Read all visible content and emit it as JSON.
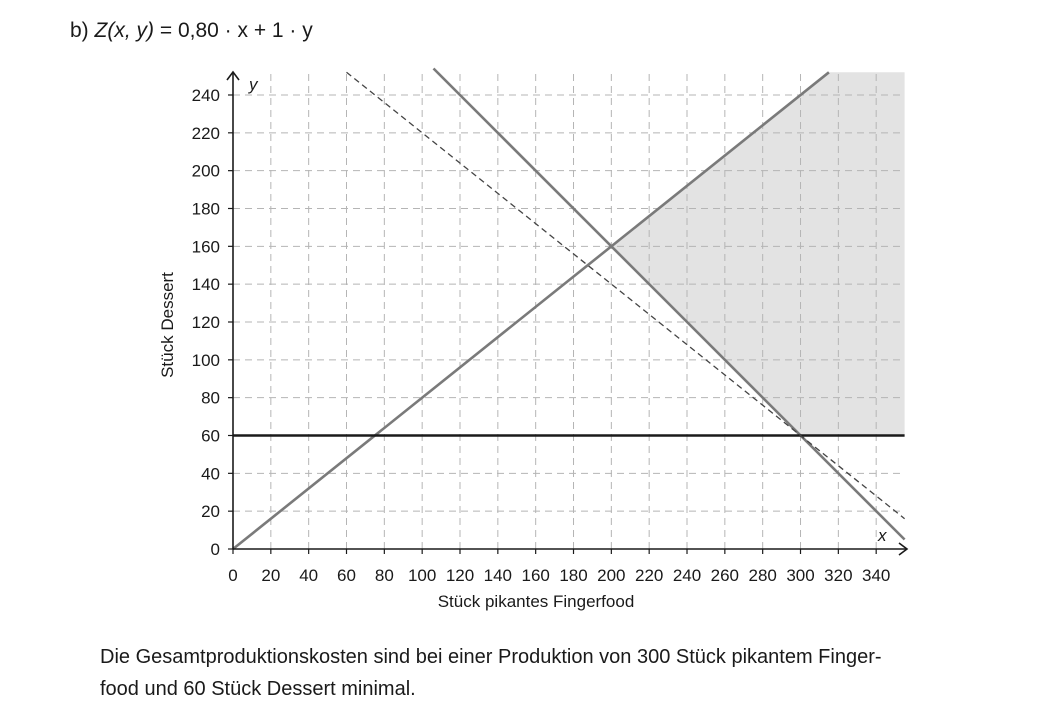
{
  "task": {
    "letter": "b)",
    "function_name": "Z(x, y)",
    "equals": " = ",
    "expression": "0,80 · x + 1 · y"
  },
  "chart_data": {
    "type": "line",
    "title": "",
    "xlabel": "Stück pikantes Fingerfood",
    "ylabel": "Stück Dessert",
    "x_axis_var": "x",
    "y_axis_var": "y",
    "xlim": [
      0,
      355
    ],
    "ylim": [
      0,
      250
    ],
    "x_ticks": [
      0,
      20,
      40,
      60,
      80,
      100,
      120,
      140,
      160,
      180,
      200,
      220,
      240,
      260,
      280,
      300,
      320,
      340
    ],
    "y_ticks": [
      0,
      20,
      40,
      60,
      80,
      100,
      120,
      140,
      160,
      180,
      200,
      220,
      240
    ],
    "grid": true,
    "grid_style": "dashed",
    "lines": [
      {
        "id": "constraint-y-equals-0.8x",
        "x": [
          0,
          315
        ],
        "y": [
          0,
          252
        ],
        "style": "solid",
        "color": "#7a7a7a"
      },
      {
        "id": "constraint-x-plus-y-equals-360",
        "x": [
          106,
          355
        ],
        "y": [
          254,
          5
        ],
        "style": "solid",
        "color": "#7a7a7a"
      },
      {
        "id": "constraint-y-equals-60",
        "x": [
          0,
          355
        ],
        "y": [
          60,
          60
        ],
        "style": "solid",
        "color": "#1a1a1a"
      },
      {
        "id": "target-function-level-line",
        "x": [
          60,
          355
        ],
        "y": [
          252,
          16
        ],
        "style": "dashed",
        "color": "#444444"
      }
    ],
    "feasible_region": {
      "color": "#e3e3e3",
      "polygon": [
        [
          200,
          160
        ],
        [
          315,
          252
        ],
        [
          355,
          252
        ],
        [
          355,
          60
        ],
        [
          300,
          60
        ]
      ]
    }
  },
  "conclusion": {
    "line1": "Die Gesamtproduktionskosten sind bei einer Produktion von 300 Stück pikantem Finger-",
    "line2": "food und 60 Stück Dessert minimal."
  }
}
